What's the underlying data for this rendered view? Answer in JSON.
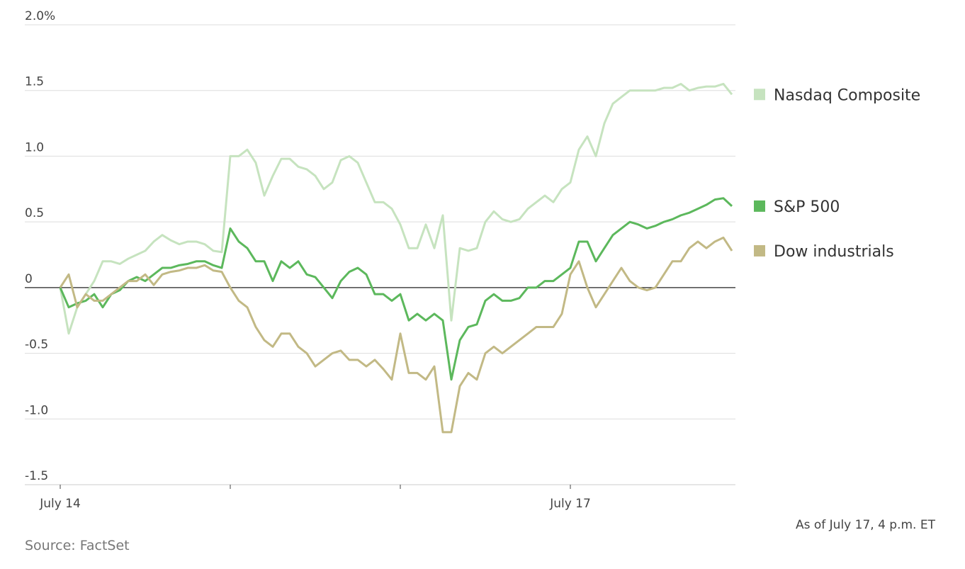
{
  "chart_data": {
    "type": "line",
    "categories": [
      "July 14",
      null,
      null,
      null,
      null,
      null,
      null,
      null,
      null,
      null,
      null,
      null,
      null,
      null,
      null,
      null,
      null,
      null,
      null,
      null,
      null,
      null,
      null,
      null,
      null,
      null,
      null,
      null,
      null,
      null,
      null,
      null,
      null,
      null,
      null,
      null,
      null,
      null,
      null,
      null,
      null,
      null,
      null,
      null,
      null,
      null,
      null,
      null,
      null,
      null,
      null,
      null,
      null,
      null,
      null,
      null,
      null,
      null,
      null,
      null,
      "July 17",
      null,
      null,
      null,
      null,
      null,
      null,
      null,
      null,
      null,
      null,
      null,
      null,
      null,
      null,
      null,
      null,
      null,
      null,
      null
    ],
    "series": [
      {
        "name": "Nasdaq Composite",
        "color": "#c6e3bf",
        "values": [
          0,
          -0.35,
          -0.15,
          -0.05,
          0.05,
          0.2,
          0.2,
          0.18,
          0.22,
          0.25,
          0.28,
          0.35,
          0.4,
          0.36,
          0.33,
          0.35,
          0.35,
          0.33,
          0.28,
          0.27,
          1.0,
          1.0,
          1.05,
          0.95,
          0.7,
          0.85,
          0.98,
          0.98,
          0.92,
          0.9,
          0.85,
          0.75,
          0.8,
          0.97,
          1.0,
          0.95,
          0.8,
          0.65,
          0.65,
          0.6,
          0.48,
          0.3,
          0.3,
          0.48,
          0.3,
          0.55,
          -0.25,
          0.3,
          0.28,
          0.3,
          0.5,
          0.58,
          0.52,
          0.5,
          0.52,
          0.6,
          0.65,
          0.7,
          0.65,
          0.75,
          0.8,
          1.05,
          1.15,
          1.0,
          1.25,
          1.4,
          1.45,
          1.5,
          1.5,
          1.5,
          1.5,
          1.52,
          1.52,
          1.55,
          1.5,
          1.52,
          1.53,
          1.53,
          1.55,
          1.47
        ]
      },
      {
        "name": "S&P 500",
        "color": "#5cb85c",
        "values": [
          0,
          -0.15,
          -0.12,
          -0.1,
          -0.05,
          -0.15,
          -0.05,
          -0.02,
          0.05,
          0.08,
          0.05,
          0.1,
          0.15,
          0.15,
          0.17,
          0.18,
          0.2,
          0.2,
          0.17,
          0.15,
          0.45,
          0.35,
          0.3,
          0.2,
          0.2,
          0.05,
          0.2,
          0.15,
          0.2,
          0.1,
          0.08,
          0.0,
          -0.08,
          0.05,
          0.12,
          0.15,
          0.1,
          -0.05,
          -0.05,
          -0.1,
          -0.05,
          -0.25,
          -0.2,
          -0.25,
          -0.2,
          -0.25,
          -0.7,
          -0.4,
          -0.3,
          -0.28,
          -0.1,
          -0.05,
          -0.1,
          -0.1,
          -0.08,
          0.0,
          0.0,
          0.05,
          0.05,
          0.1,
          0.15,
          0.35,
          0.35,
          0.2,
          0.3,
          0.4,
          0.45,
          0.5,
          0.48,
          0.45,
          0.47,
          0.5,
          0.52,
          0.55,
          0.57,
          0.6,
          0.63,
          0.67,
          0.68,
          0.62
        ]
      },
      {
        "name": "Dow industrials",
        "color": "#c2b985",
        "values": [
          0,
          0.1,
          -0.15,
          -0.05,
          -0.1,
          -0.1,
          -0.05,
          0.0,
          0.05,
          0.05,
          0.1,
          0.02,
          0.1,
          0.12,
          0.13,
          0.15,
          0.15,
          0.17,
          0.13,
          0.12,
          0.0,
          -0.1,
          -0.15,
          -0.3,
          -0.4,
          -0.45,
          -0.35,
          -0.35,
          -0.45,
          -0.5,
          -0.6,
          -0.55,
          -0.5,
          -0.48,
          -0.55,
          -0.55,
          -0.6,
          -0.55,
          -0.62,
          -0.7,
          -0.35,
          -0.65,
          -0.65,
          -0.7,
          -0.6,
          -1.1,
          -1.1,
          -0.75,
          -0.65,
          -0.7,
          -0.5,
          -0.45,
          -0.5,
          -0.45,
          -0.4,
          -0.35,
          -0.3,
          -0.3,
          -0.3,
          -0.2,
          0.1,
          0.2,
          0.0,
          -0.15,
          -0.05,
          0.05,
          0.15,
          0.05,
          0.0,
          -0.02,
          0.0,
          0.1,
          0.2,
          0.2,
          0.3,
          0.35,
          0.3,
          0.35,
          0.38,
          0.28
        ]
      }
    ],
    "ylim": [
      -1.5,
      2.0
    ],
    "yticks": [
      {
        "value": 2,
        "label": "2.0%"
      },
      1.5,
      {
        "value": 1,
        "label": "1.0"
      },
      0.5,
      0,
      -0.5,
      {
        "value": -1,
        "label": "-1.0"
      },
      -1.5
    ],
    "grid": true,
    "note": "As of July 17, 4 p.m. ET",
    "source": "Source: FactSet"
  }
}
